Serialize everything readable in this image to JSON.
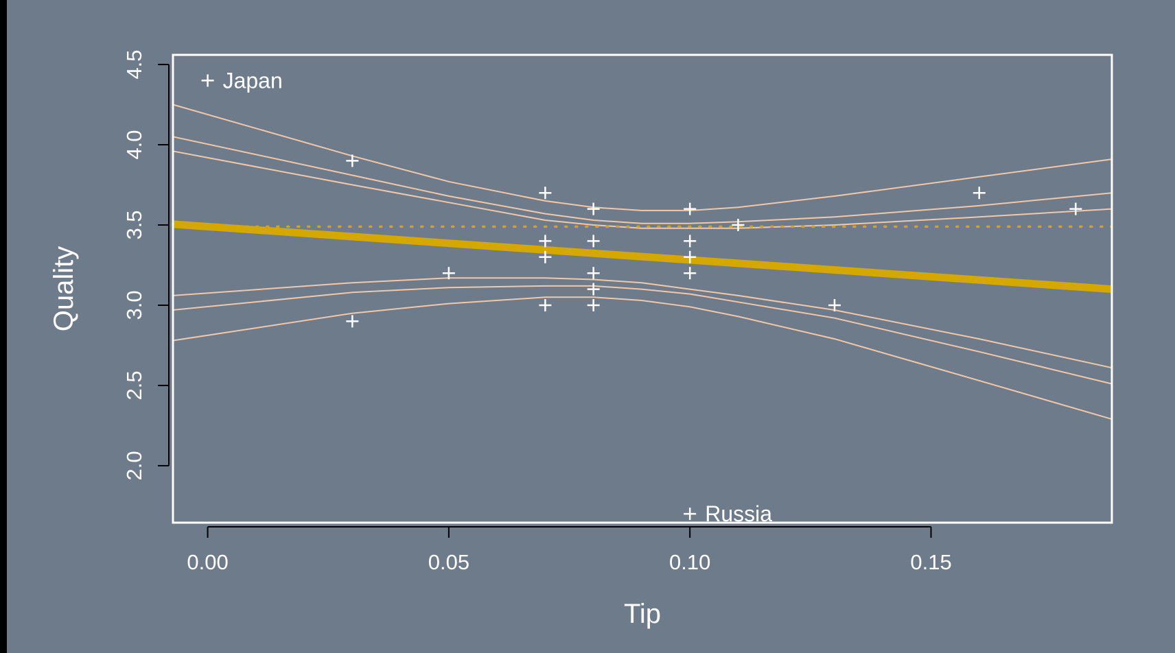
{
  "chart_data": {
    "type": "scatter",
    "xlabel": "Tip",
    "ylabel": "Quality",
    "xlim": [
      -0.0072,
      0.1875
    ],
    "ylim": [
      1.645,
      4.56
    ],
    "x_ticks": [
      "0.00",
      "0.05",
      "0.10",
      "0.15"
    ],
    "x_tick_values": [
      0.0,
      0.05,
      0.1,
      0.15
    ],
    "y_ticks": [
      "2.0",
      "2.5",
      "3.0",
      "3.5",
      "4.0",
      "4.5"
    ],
    "y_tick_values": [
      2.0,
      2.5,
      3.0,
      3.5,
      4.0,
      4.5
    ],
    "points": [
      {
        "x": 0.0,
        "y": 4.4
      },
      {
        "x": 0.03,
        "y": 3.9
      },
      {
        "x": 0.03,
        "y": 2.9
      },
      {
        "x": 0.05,
        "y": 3.2
      },
      {
        "x": 0.07,
        "y": 3.7
      },
      {
        "x": 0.07,
        "y": 3.4
      },
      {
        "x": 0.07,
        "y": 3.3
      },
      {
        "x": 0.07,
        "y": 3.0
      },
      {
        "x": 0.08,
        "y": 3.6
      },
      {
        "x": 0.08,
        "y": 3.4
      },
      {
        "x": 0.08,
        "y": 3.2
      },
      {
        "x": 0.08,
        "y": 3.1
      },
      {
        "x": 0.08,
        "y": 3.0
      },
      {
        "x": 0.1,
        "y": 3.6
      },
      {
        "x": 0.1,
        "y": 3.4
      },
      {
        "x": 0.1,
        "y": 3.3
      },
      {
        "x": 0.1,
        "y": 3.2
      },
      {
        "x": 0.1,
        "y": 1.7
      },
      {
        "x": 0.11,
        "y": 3.5
      },
      {
        "x": 0.13,
        "y": 3.0
      },
      {
        "x": 0.16,
        "y": 3.7
      },
      {
        "x": 0.18,
        "y": 3.6
      }
    ],
    "point_labels": [
      {
        "text": "Japan",
        "x": 0.0,
        "y": 4.4
      },
      {
        "text": "Russia",
        "x": 0.1,
        "y": 1.7
      }
    ],
    "fit_line": {
      "x": [
        -0.0072,
        0.1875
      ],
      "y": [
        3.505,
        3.1
      ],
      "color": "#d4a800"
    },
    "mean_line": {
      "y": 3.49,
      "color": "#d4a800",
      "style": "dotted"
    },
    "bands": {
      "color": "#f2c9a8",
      "x": [
        -0.0072,
        0.03,
        0.05,
        0.07,
        0.08,
        0.09,
        0.1,
        0.11,
        0.13,
        0.16,
        0.1875
      ],
      "upper_outer": [
        4.25,
        3.93,
        3.77,
        3.65,
        3.61,
        3.59,
        3.59,
        3.61,
        3.68,
        3.8,
        3.91
      ],
      "upper_mid": [
        4.05,
        3.81,
        3.68,
        3.57,
        3.53,
        3.51,
        3.51,
        3.52,
        3.55,
        3.62,
        3.7
      ],
      "upper_inner": [
        3.96,
        3.75,
        3.64,
        3.53,
        3.5,
        3.48,
        3.48,
        3.48,
        3.5,
        3.55,
        3.6
      ],
      "lower_inner": [
        3.06,
        3.14,
        3.17,
        3.17,
        3.16,
        3.14,
        3.1,
        3.06,
        2.97,
        2.79,
        2.61
      ],
      "lower_mid": [
        2.97,
        3.08,
        3.11,
        3.12,
        3.12,
        3.1,
        3.07,
        3.02,
        2.92,
        2.71,
        2.51
      ],
      "lower_outer": [
        2.78,
        2.95,
        3.01,
        3.05,
        3.05,
        3.03,
        2.99,
        2.93,
        2.79,
        2.53,
        2.29
      ]
    }
  }
}
